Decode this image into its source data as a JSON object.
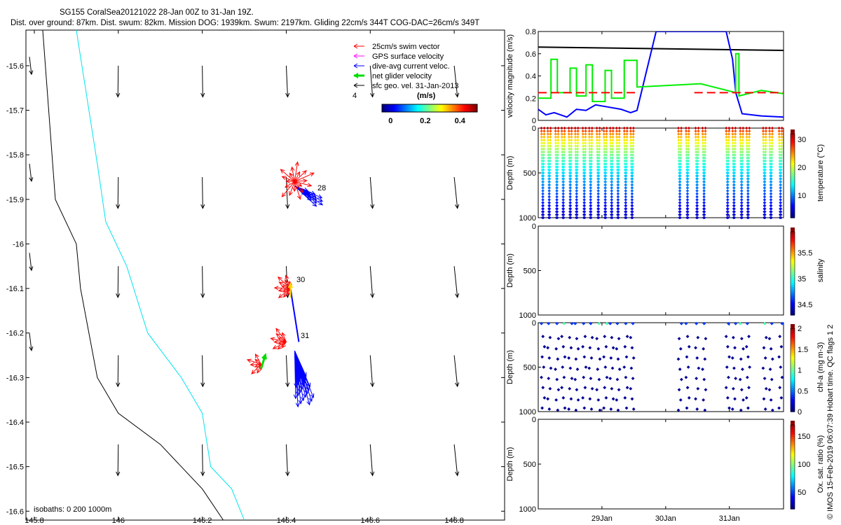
{
  "header": {
    "title": "SG155 CoralSea20121022 28-Jan 00Z to 31-Jan 19Z.",
    "subtitle": "Dist. over ground: 87km. Dist. swum: 82km. Mission DOG: 1939km. Swum: 2197km. Gliding 22cm/s 344T COG-DAC=26cm/s 349T"
  },
  "credit": "© IMOS 15-Feb-2019 06:07:39 Hobart time. QC flags 1  2",
  "colors": {
    "swim": "#ff0000",
    "gps": "#ff00ff",
    "dac": "#0000ff",
    "net": "#00dd00",
    "sfc": "#000000",
    "isobath0": "#000000",
    "isobath200": "#00e5ee"
  },
  "chart_data": [
    {
      "type": "scatter",
      "name": "map",
      "xlim": [
        145.78,
        146.92
      ],
      "ylim": [
        -16.62,
        -15.52
      ],
      "x_ticks": [
        "145.8",
        "146",
        "146.2",
        "146.4",
        "146.6",
        "146.8"
      ],
      "y_ticks": [
        "-15.6",
        "-15.7",
        "-15.8",
        "-15.9",
        "-16",
        "-16.1",
        "-16.2",
        "-16.3",
        "-16.4",
        "-16.5",
        "-16.6"
      ],
      "legend": [
        "25cm/s swim vector",
        "GPS surface velocity",
        "dive-avg current veloc.",
        "net glider velocity",
        "sfc geo. vel. 31-Jan-2013"
      ],
      "colorbar": {
        "label": "(m/s)",
        "ticks": [
          "0",
          "0.2",
          "0.4"
        ],
        "range": [
          -0.05,
          0.5
        ]
      },
      "day_labels": [
        "28",
        "30",
        "31",
        "4"
      ],
      "isobath_label": "isobaths: 0   200  1000m",
      "isobath_0": [
        [
          145.82,
          -15.52
        ],
        [
          145.85,
          -15.9
        ],
        [
          145.9,
          -16.0
        ],
        [
          145.91,
          -16.1
        ],
        [
          145.93,
          -16.2
        ],
        [
          145.95,
          -16.3
        ],
        [
          146.0,
          -16.38
        ],
        [
          146.1,
          -16.45
        ],
        [
          146.2,
          -16.55
        ],
        [
          146.25,
          -16.62
        ]
      ],
      "isobath_200": [
        [
          145.9,
          -15.52
        ],
        [
          145.93,
          -15.7
        ],
        [
          145.95,
          -15.82
        ],
        [
          145.97,
          -15.95
        ],
        [
          146.02,
          -16.05
        ],
        [
          146.07,
          -16.2
        ],
        [
          146.15,
          -16.3
        ],
        [
          146.2,
          -16.38
        ],
        [
          146.22,
          -16.5
        ],
        [
          146.27,
          -16.55
        ],
        [
          146.3,
          -16.62
        ]
      ],
      "sfc_arrows": {
        "lons": [
          146.0,
          146.2,
          146.4,
          146.6,
          146.8
        ],
        "lats": [
          -15.6,
          -15.85,
          -16.05,
          -16.25,
          -16.45
        ],
        "dlat": -0.07
      }
    },
    {
      "type": "line",
      "name": "velocity",
      "ylabel": "velocity magnitude (m/s)",
      "xlim": [
        28.0,
        31.85
      ],
      "ylim": [
        0,
        0.8
      ],
      "y_ticks": [
        "0",
        "0.2",
        "0.4",
        "0.6",
        "0.8"
      ],
      "series": [
        {
          "color": "#000000",
          "x": [
            28.0,
            31.85
          ],
          "y": [
            0.66,
            0.63
          ]
        },
        {
          "color": "#0000ff",
          "x": [
            28.0,
            28.12,
            28.25,
            28.35,
            28.45,
            28.6,
            28.75,
            28.9,
            29.1,
            29.3,
            29.45,
            29.55,
            29.85,
            30.95,
            31.05,
            31.1,
            31.2,
            31.5,
            31.85
          ],
          "y": [
            0.1,
            0.05,
            0.07,
            0.05,
            0.03,
            0.1,
            0.09,
            0.14,
            0.12,
            0.1,
            0.07,
            0.09,
            0.8,
            0.8,
            0.55,
            0.25,
            0.06,
            0.04,
            0.03
          ]
        },
        {
          "color": "#00ee00",
          "x": [
            28.0,
            28.0,
            28.2,
            28.2,
            28.3,
            28.3,
            28.5,
            28.5,
            28.6,
            28.6,
            28.75,
            28.75,
            28.85,
            28.85,
            29.05,
            29.05,
            29.15,
            29.15,
            29.35,
            29.35,
            29.55,
            29.55,
            30.55,
            30.55,
            31.1,
            31.1,
            31.15,
            31.15,
            31.5,
            31.85
          ],
          "y": [
            0.2,
            0.2,
            0.2,
            0.55,
            0.55,
            0.25,
            0.25,
            0.47,
            0.47,
            0.22,
            0.22,
            0.5,
            0.5,
            0.17,
            0.17,
            0.45,
            0.45,
            0.2,
            0.2,
            0.54,
            0.54,
            0.3,
            0.33,
            0.33,
            0.25,
            0.6,
            0.6,
            0.22,
            0.27,
            0.24
          ]
        },
        {
          "color": "#ff0000",
          "dash": true,
          "x": [
            28.0,
            29.55
          ],
          "y": [
            0.25,
            0.25
          ]
        },
        {
          "color": "#ff0000",
          "dash": true,
          "x": [
            30.45,
            31.85
          ],
          "y": [
            0.25,
            0.25
          ]
        }
      ]
    },
    {
      "type": "scatter",
      "name": "temperature",
      "ylabel": "Depth (m)",
      "colorbar_label": "temperature (°C)",
      "colorbar_ticks": [
        "10",
        "20",
        "30"
      ],
      "clim": [
        2,
        32
      ],
      "ylim": [
        0,
        1000
      ],
      "y_ticks": [
        "0",
        "500",
        "1000"
      ]
    },
    {
      "type": "scatter",
      "name": "salinity",
      "ylabel": "Depth (m)",
      "colorbar_label": "salinity",
      "colorbar_ticks": [
        "34.5",
        "35",
        "35.5"
      ],
      "clim": [
        34.3,
        35.9
      ],
      "ylim": [
        0,
        1000
      ],
      "y_ticks": [
        "0",
        "500",
        "1000"
      ]
    },
    {
      "type": "scatter",
      "name": "chla",
      "ylabel": "Depth (m)",
      "colorbar_label": "chl-a (mg m-3)",
      "colorbar_ticks": [
        "0",
        "0.5",
        "1",
        "1.5",
        "2"
      ],
      "clim": [
        0,
        2
      ],
      "ylim": [
        0,
        1000
      ],
      "y_ticks": [
        "0",
        "500",
        "1000"
      ]
    },
    {
      "type": "scatter",
      "name": "oxygen",
      "ylabel": "Depth (m)",
      "colorbar_label": "Ox. sat. ratio (%)",
      "colorbar_ticks": [
        "50",
        "100",
        "150"
      ],
      "clim": [
        20,
        170
      ],
      "ylim": [
        0,
        1000
      ],
      "y_ticks": [
        "0",
        "500",
        "1000"
      ],
      "x_ticks": [
        "29Jan",
        "30Jan",
        "31Jan"
      ],
      "x_tick_values": [
        29.0,
        30.0,
        31.0
      ]
    }
  ],
  "profiles": {
    "dive_times": [
      28.05,
      28.15,
      28.27,
      28.37,
      28.48,
      28.58,
      28.7,
      28.8,
      28.92,
      29.03,
      29.13,
      29.23,
      29.35,
      29.45,
      30.2,
      30.32,
      30.47,
      30.58,
      30.95,
      31.05,
      31.17,
      31.27,
      31.53,
      31.63,
      31.78
    ],
    "chla_surface_highlight": [
      28.35,
      28.9,
      29.03,
      31.2,
      31.55
    ]
  }
}
